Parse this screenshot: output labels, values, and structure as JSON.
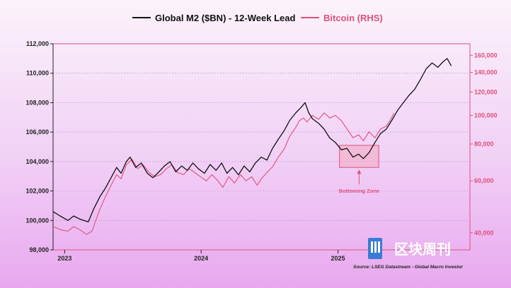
{
  "chart_data": {
    "type": "line",
    "legend": {
      "m2_label": "Global M2 ($BN) - 12-Week Lead",
      "btc_label": "Bitcoin (RHS)"
    },
    "colors": {
      "m2": "#111111",
      "btc": "#e0507a",
      "frame": "#e0507a"
    },
    "y_left": {
      "ylim": [
        98000,
        112000
      ],
      "ticks": [
        98000,
        100000,
        102000,
        104000,
        106000,
        108000,
        110000,
        112000
      ],
      "tick_labels": [
        "98,000",
        "100,000",
        "102,000",
        "104,000",
        "106,000",
        "108,000",
        "110,000",
        "112,000"
      ]
    },
    "y_right": {
      "scale": "log",
      "ylim": [
        35000,
        175000
      ],
      "ticks": [
        40000,
        60000,
        80000,
        100000,
        120000,
        140000,
        160000
      ],
      "tick_labels": [
        "40,000",
        "60,000",
        "80,000",
        "100,000",
        "120,000",
        "140,000",
        "160,000"
      ]
    },
    "x_axis": {
      "range": [
        "2022-12-01",
        "2025-12-20"
      ],
      "tick_labels": [
        {
          "date": "2023-01-01",
          "label": "2023"
        },
        {
          "date": "2024-01-01",
          "label": "2024"
        },
        {
          "date": "2025-01-01",
          "label": "2025"
        }
      ]
    },
    "series": [
      {
        "name": "Global M2 ($BN) - 12-Week Lead",
        "axis": "left",
        "points": [
          [
            "2022-12-01",
            100600
          ],
          [
            "2022-12-20",
            100300
          ],
          [
            "2023-01-10",
            100000
          ],
          [
            "2023-01-25",
            100300
          ],
          [
            "2023-02-10",
            100100
          ],
          [
            "2023-03-05",
            99900
          ],
          [
            "2023-03-20",
            100800
          ],
          [
            "2023-04-05",
            101600
          ],
          [
            "2023-04-20",
            102200
          ],
          [
            "2023-05-05",
            102900
          ],
          [
            "2023-05-20",
            103600
          ],
          [
            "2023-06-01",
            103200
          ],
          [
            "2023-06-15",
            104000
          ],
          [
            "2023-06-25",
            104300
          ],
          [
            "2023-07-10",
            103600
          ],
          [
            "2023-07-25",
            103900
          ],
          [
            "2023-08-10",
            103200
          ],
          [
            "2023-08-25",
            102900
          ],
          [
            "2023-09-10",
            103300
          ],
          [
            "2023-09-25",
            103700
          ],
          [
            "2023-10-10",
            104000
          ],
          [
            "2023-10-25",
            103300
          ],
          [
            "2023-11-10",
            103700
          ],
          [
            "2023-11-25",
            103400
          ],
          [
            "2023-12-10",
            103900
          ],
          [
            "2023-12-25",
            103500
          ],
          [
            "2024-01-10",
            103200
          ],
          [
            "2024-01-25",
            103800
          ],
          [
            "2024-02-10",
            103400
          ],
          [
            "2024-02-25",
            103900
          ],
          [
            "2024-03-10",
            103200
          ],
          [
            "2024-03-25",
            103600
          ],
          [
            "2024-04-10",
            103100
          ],
          [
            "2024-04-25",
            103700
          ],
          [
            "2024-05-10",
            103300
          ],
          [
            "2024-05-25",
            103900
          ],
          [
            "2024-06-10",
            104300
          ],
          [
            "2024-06-25",
            104100
          ],
          [
            "2024-07-10",
            104900
          ],
          [
            "2024-07-25",
            105500
          ],
          [
            "2024-08-10",
            106100
          ],
          [
            "2024-08-25",
            106800
          ],
          [
            "2024-09-10",
            107300
          ],
          [
            "2024-09-25",
            107700
          ],
          [
            "2024-10-05",
            108000
          ],
          [
            "2024-10-15",
            107300
          ],
          [
            "2024-10-25",
            106900
          ],
          [
            "2024-11-10",
            106600
          ],
          [
            "2024-11-25",
            106200
          ],
          [
            "2024-12-10",
            105600
          ],
          [
            "2024-12-25",
            105300
          ],
          [
            "2025-01-10",
            104800
          ],
          [
            "2025-01-25",
            104900
          ],
          [
            "2025-02-10",
            104300
          ],
          [
            "2025-02-25",
            104500
          ],
          [
            "2025-03-10",
            104200
          ],
          [
            "2025-03-25",
            104600
          ],
          [
            "2025-04-10",
            105300
          ],
          [
            "2025-04-25",
            105900
          ],
          [
            "2025-05-10",
            106200
          ],
          [
            "2025-05-25",
            106800
          ],
          [
            "2025-06-10",
            107500
          ],
          [
            "2025-06-25",
            108000
          ],
          [
            "2025-07-10",
            108500
          ],
          [
            "2025-07-25",
            108900
          ],
          [
            "2025-08-10",
            109600
          ],
          [
            "2025-08-25",
            110300
          ],
          [
            "2025-09-10",
            110700
          ],
          [
            "2025-09-25",
            110400
          ],
          [
            "2025-10-10",
            110800
          ],
          [
            "2025-10-20",
            111000
          ],
          [
            "2025-10-31",
            110500
          ]
        ]
      },
      {
        "name": "Bitcoin (RHS)",
        "axis": "right",
        "points": [
          [
            "2022-12-01",
            42000
          ],
          [
            "2022-12-20",
            41000
          ],
          [
            "2023-01-10",
            40500
          ],
          [
            "2023-01-25",
            42000
          ],
          [
            "2023-02-10",
            41000
          ],
          [
            "2023-03-01",
            39500
          ],
          [
            "2023-03-15",
            40500
          ],
          [
            "2023-04-05",
            48000
          ],
          [
            "2023-04-20",
            53000
          ],
          [
            "2023-05-05",
            58000
          ],
          [
            "2023-05-20",
            63000
          ],
          [
            "2023-06-01",
            61000
          ],
          [
            "2023-06-15",
            68000
          ],
          [
            "2023-06-30",
            71000
          ],
          [
            "2023-07-15",
            66000
          ],
          [
            "2023-07-30",
            68000
          ],
          [
            "2023-08-15",
            64000
          ],
          [
            "2023-08-30",
            62000
          ],
          [
            "2023-09-15",
            63000
          ],
          [
            "2023-09-30",
            66000
          ],
          [
            "2023-10-15",
            68000
          ],
          [
            "2023-10-30",
            64000
          ],
          [
            "2023-11-15",
            63000
          ],
          [
            "2023-11-30",
            66000
          ],
          [
            "2023-12-15",
            64000
          ],
          [
            "2023-12-30",
            62000
          ],
          [
            "2024-01-15",
            60000
          ],
          [
            "2024-01-30",
            63000
          ],
          [
            "2024-02-15",
            60000
          ],
          [
            "2024-02-28",
            57000
          ],
          [
            "2024-03-15",
            62000
          ],
          [
            "2024-03-30",
            59000
          ],
          [
            "2024-04-15",
            63000
          ],
          [
            "2024-04-30",
            60000
          ],
          [
            "2024-05-15",
            62000
          ],
          [
            "2024-05-30",
            58000
          ],
          [
            "2024-06-10",
            61000
          ],
          [
            "2024-06-25",
            64000
          ],
          [
            "2024-07-10",
            67000
          ],
          [
            "2024-07-25",
            72000
          ],
          [
            "2024-08-10",
            77000
          ],
          [
            "2024-08-25",
            85000
          ],
          [
            "2024-09-10",
            91000
          ],
          [
            "2024-09-20",
            96000
          ],
          [
            "2024-10-01",
            98000
          ],
          [
            "2024-10-10",
            95000
          ],
          [
            "2024-10-25",
            100000
          ],
          [
            "2024-11-10",
            97000
          ],
          [
            "2024-11-25",
            102000
          ],
          [
            "2024-12-10",
            98000
          ],
          [
            "2024-12-25",
            100000
          ],
          [
            "2025-01-10",
            96000
          ],
          [
            "2025-01-25",
            90000
          ],
          [
            "2025-02-10",
            84000
          ],
          [
            "2025-02-25",
            86000
          ],
          [
            "2025-03-10",
            82000
          ],
          [
            "2025-03-25",
            88000
          ],
          [
            "2025-04-10",
            84000
          ],
          [
            "2025-04-25",
            90000
          ],
          [
            "2025-05-10",
            92000
          ],
          [
            "2025-05-20",
            96000
          ],
          [
            "2025-05-31",
            102000
          ]
        ]
      }
    ],
    "annotation": {
      "text": "Bottoming Zone",
      "box_x": [
        "2025-01-05",
        "2025-04-20"
      ],
      "box_y": [
        103600,
        105100
      ]
    },
    "source": "Source: LSEG Datastream - Global Macro Investor",
    "watermark": "区块周刊"
  }
}
